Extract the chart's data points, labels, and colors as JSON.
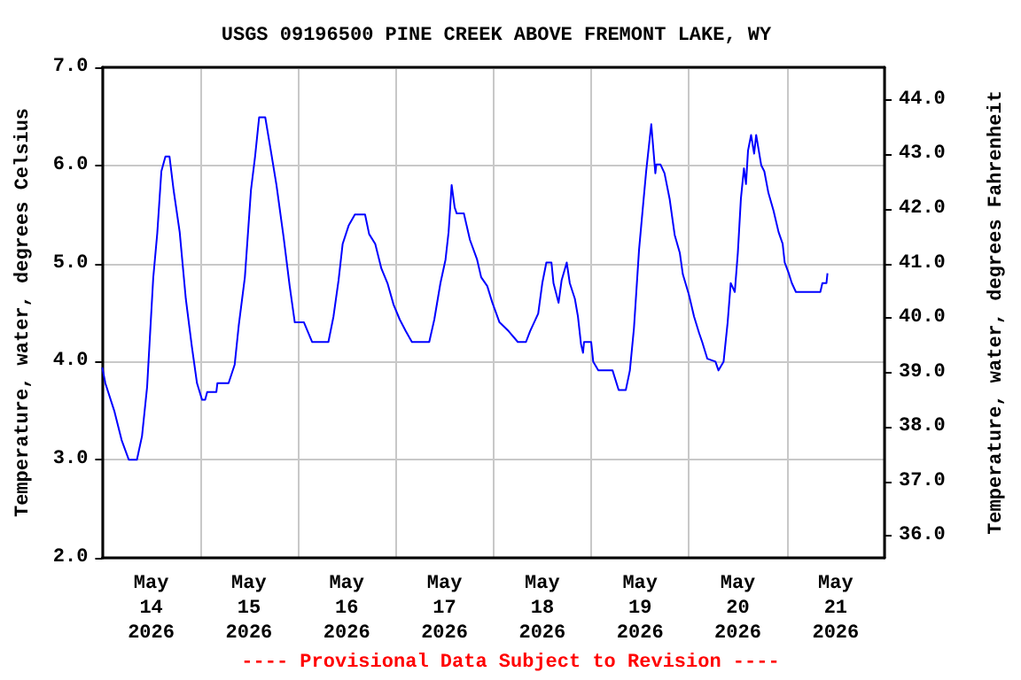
{
  "chart_data": {
    "type": "line",
    "title": "USGS 09196500 PINE CREEK ABOVE FREMONT LAKE, WY",
    "ylabel": "Temperature, water, degrees Celsius",
    "y2label": "Temperature, water, degrees Fahrenheit",
    "annotations": [
      "---- Provisional Data Subject to Revision ----"
    ],
    "x": [
      "2026-05-14T00:00",
      "2026-05-14T00:45",
      "2026-05-14T03:00",
      "2026-05-14T04:45",
      "2026-05-14T06:30",
      "2026-05-14T08:30",
      "2026-05-14T09:45",
      "2026-05-14T11:00",
      "2026-05-14T12:30",
      "2026-05-14T13:30",
      "2026-05-14T14:30",
      "2026-05-14T15:30",
      "2026-05-14T16:30",
      "2026-05-14T17:30",
      "2026-05-14T19:00",
      "2026-05-14T20:30",
      "2026-05-14T22:00",
      "2026-05-14T23:15",
      "2026-05-15T00:30",
      "2026-05-15T01:15",
      "2026-05-15T01:45",
      "2026-05-15T04:00",
      "2026-05-15T04:15",
      "2026-05-15T07:00",
      "2026-05-15T08:30",
      "2026-05-15T09:30",
      "2026-05-15T11:00",
      "2026-05-15T12:30",
      "2026-05-15T13:30",
      "2026-05-15T14:30",
      "2026-05-15T16:00",
      "2026-05-15T17:15",
      "2026-05-15T18:45",
      "2026-05-15T20:30",
      "2026-05-15T22:00",
      "2026-05-15T23:15",
      "2026-05-16T01:30",
      "2026-05-16T03:30",
      "2026-05-16T07:30",
      "2026-05-16T08:45",
      "2026-05-16T10:00",
      "2026-05-16T11:00",
      "2026-05-16T12:30",
      "2026-05-16T14:00",
      "2026-05-16T16:30",
      "2026-05-16T17:30",
      "2026-05-16T19:00",
      "2026-05-16T20:30",
      "2026-05-16T22:00",
      "2026-05-16T23:30",
      "2026-05-17T01:00",
      "2026-05-17T02:30",
      "2026-05-17T04:00",
      "2026-05-17T08:15",
      "2026-05-17T09:30",
      "2026-05-17T11:00",
      "2026-05-17T12:15",
      "2026-05-17T13:00",
      "2026-05-17T13:45",
      "2026-05-17T14:30",
      "2026-05-17T15:00",
      "2026-05-17T16:45",
      "2026-05-17T18:15",
      "2026-05-17T20:00",
      "2026-05-17T21:00",
      "2026-05-17T22:30",
      "2026-05-17T23:45",
      "2026-05-18T01:30",
      "2026-05-18T03:45",
      "2026-05-18T06:00",
      "2026-05-18T08:00",
      "2026-05-18T09:00",
      "2026-05-18T11:00",
      "2026-05-18T12:00",
      "2026-05-18T13:00",
      "2026-05-18T14:15",
      "2026-05-18T14:45",
      "2026-05-18T16:00",
      "2026-05-18T16:45",
      "2026-05-18T18:00",
      "2026-05-18T18:45",
      "2026-05-18T20:00",
      "2026-05-18T20:45",
      "2026-05-18T21:30",
      "2026-05-18T22:00",
      "2026-05-18T22:15",
      "2026-05-19T00:00",
      "2026-05-19T00:30",
      "2026-05-19T01:45",
      "2026-05-19T05:15",
      "2026-05-19T06:45",
      "2026-05-19T08:30",
      "2026-05-19T09:30",
      "2026-05-19T10:30",
      "2026-05-19T11:45",
      "2026-05-19T12:45",
      "2026-05-19T13:30",
      "2026-05-19T14:45",
      "2026-05-19T15:45",
      "2026-05-19T16:00",
      "2026-05-19T17:00",
      "2026-05-19T18:00",
      "2026-05-19T19:15",
      "2026-05-19T20:30",
      "2026-05-19T21:45",
      "2026-05-19T22:30",
      "2026-05-20T00:00",
      "2026-05-20T01:15",
      "2026-05-20T02:30",
      "2026-05-20T03:15",
      "2026-05-20T04:30",
      "2026-05-20T06:30",
      "2026-05-20T07:15",
      "2026-05-20T08:30",
      "2026-05-20T09:30",
      "2026-05-20T10:15",
      "2026-05-20T11:15",
      "2026-05-20T12:00",
      "2026-05-20T12:45",
      "2026-05-20T13:30",
      "2026-05-20T14:00",
      "2026-05-20T14:30",
      "2026-05-20T15:15",
      "2026-05-20T16:00",
      "2026-05-20T16:30",
      "2026-05-20T17:45",
      "2026-05-20T18:30",
      "2026-05-20T19:30",
      "2026-05-20T20:45",
      "2026-05-20T22:00",
      "2026-05-20T23:00",
      "2026-05-20T23:30",
      "2026-05-21T00:30",
      "2026-05-21T01:15",
      "2026-05-21T02:15",
      "2026-05-21T08:15",
      "2026-05-21T08:45",
      "2026-05-21T09:45",
      "2026-05-21T10:00"
    ],
    "series": [
      {
        "color": "#0000ff",
        "values": [
          3.94,
          3.78,
          3.49,
          3.2,
          3.0,
          3.0,
          3.24,
          3.74,
          4.85,
          5.31,
          5.94,
          6.09,
          6.09,
          5.75,
          5.32,
          4.64,
          4.15,
          3.78,
          3.61,
          3.61,
          3.69,
          3.69,
          3.78,
          3.78,
          3.97,
          4.37,
          4.86,
          5.75,
          6.09,
          6.49,
          6.49,
          6.18,
          5.8,
          5.27,
          4.77,
          4.4,
          4.4,
          4.2,
          4.2,
          4.46,
          4.83,
          5.2,
          5.39,
          5.5,
          5.5,
          5.3,
          5.2,
          4.95,
          4.8,
          4.58,
          4.43,
          4.31,
          4.2,
          4.2,
          4.43,
          4.8,
          5.04,
          5.32,
          5.8,
          5.57,
          5.51,
          5.51,
          5.24,
          5.04,
          4.86,
          4.77,
          4.6,
          4.4,
          4.31,
          4.2,
          4.2,
          4.31,
          4.49,
          4.8,
          5.01,
          5.01,
          4.8,
          4.6,
          4.83,
          5.01,
          4.8,
          4.64,
          4.46,
          4.18,
          4.09,
          4.2,
          4.2,
          4.0,
          3.91,
          3.91,
          3.71,
          3.71,
          3.91,
          4.34,
          5.14,
          5.6,
          5.94,
          6.42,
          5.92,
          6.01,
          6.01,
          5.92,
          5.66,
          5.29,
          5.11,
          4.89,
          4.68,
          4.46,
          4.29,
          4.2,
          4.03,
          4.0,
          3.91,
          4.0,
          4.4,
          4.8,
          4.71,
          5.11,
          5.66,
          5.97,
          5.81,
          6.15,
          6.31,
          6.12,
          6.31,
          6.0,
          5.94,
          5.72,
          5.54,
          5.32,
          5.2,
          5.01,
          4.9,
          4.8,
          4.71,
          4.71,
          4.8,
          4.8,
          4.9
        ]
      }
    ],
    "xlim": [
      "2026-05-14T00:00",
      "2026-05-22T00:00"
    ],
    "xticks": [
      {
        "value": "2026-05-14T12:00",
        "label": "May\n14\n2026"
      },
      {
        "value": "2026-05-15T12:00",
        "label": "May\n15\n2026"
      },
      {
        "value": "2026-05-16T12:00",
        "label": "May\n16\n2026"
      },
      {
        "value": "2026-05-17T12:00",
        "label": "May\n17\n2026"
      },
      {
        "value": "2026-05-18T12:00",
        "label": "May\n18\n2026"
      },
      {
        "value": "2026-05-19T12:00",
        "label": "May\n19\n2026"
      },
      {
        "value": "2026-05-20T12:00",
        "label": "May\n20\n2026"
      },
      {
        "value": "2026-05-21T12:00",
        "label": "May\n21\n2026"
      },
      {
        "value": "2026-05-15T00:00",
        "label": null
      },
      {
        "value": "2026-05-16T00:00",
        "label": null
      },
      {
        "value": "2026-05-17T00:00",
        "label": null
      },
      {
        "value": "2026-05-18T00:00",
        "label": null
      },
      {
        "value": "2026-05-19T00:00",
        "label": null
      },
      {
        "value": "2026-05-20T00:00",
        "label": null
      },
      {
        "value": "2026-05-21T00:00",
        "label": null
      }
    ],
    "ylim": [
      2,
      7
    ],
    "yticks": [
      {
        "value": 2,
        "label": "2.0"
      },
      {
        "value": 3,
        "label": "3.0"
      },
      {
        "value": 4,
        "label": "4.0"
      },
      {
        "value": 5,
        "label": "5.0"
      },
      {
        "value": 6,
        "label": "6.0"
      },
      {
        "value": 7,
        "label": "7.0"
      }
    ],
    "y2lim": [
      35.6,
      44.6
    ],
    "y2ticks": [
      {
        "value": 36,
        "label": "36.0"
      },
      {
        "value": 37,
        "label": "37.0"
      },
      {
        "value": 38,
        "label": "38.0"
      },
      {
        "value": 39,
        "label": "39.0"
      },
      {
        "value": 40,
        "label": "40.0"
      },
      {
        "value": 41,
        "label": "41.0"
      },
      {
        "value": 42,
        "label": "42.0"
      },
      {
        "value": 43,
        "label": "43.0"
      },
      {
        "value": 44,
        "label": "44.0"
      }
    ],
    "grid": true,
    "marker": "none",
    "line_style": "solid"
  }
}
